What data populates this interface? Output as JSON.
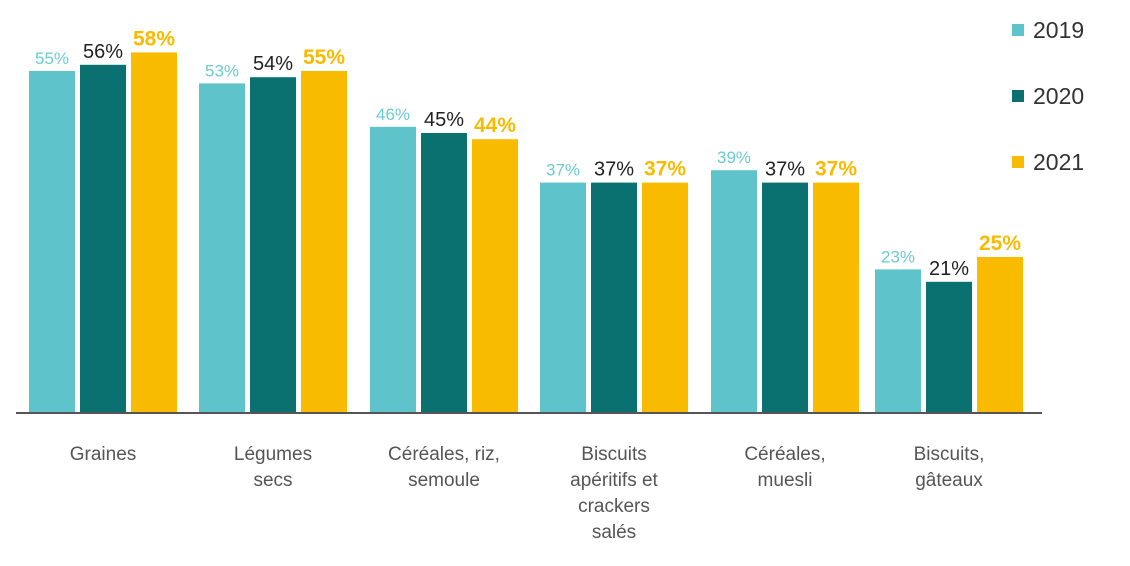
{
  "chart_data": {
    "type": "bar",
    "categories": [
      "Graines",
      "Légumes secs",
      "Céréales, riz, semoule",
      "Biscuits apéritifs et crackers salés",
      "Céréales, muesli",
      "Biscuits, gâteaux"
    ],
    "category_lines": [
      [
        "Graines"
      ],
      [
        "Légumes",
        "secs"
      ],
      [
        "Céréales, riz,",
        "semoule"
      ],
      [
        "Biscuits",
        "apéritifs et",
        "crackers",
        "salés"
      ],
      [
        "Céréales,",
        "muesli"
      ],
      [
        "Biscuits,",
        "gâteaux"
      ]
    ],
    "series": [
      {
        "name": "2019",
        "values": [
          55,
          53,
          46,
          37,
          39,
          23
        ],
        "labels": [
          "55%",
          "53%",
          "46%",
          "37%",
          "39%",
          "23%"
        ],
        "color": "#5fc3cc"
      },
      {
        "name": "2020",
        "values": [
          56,
          54,
          45,
          37,
          37,
          21
        ],
        "labels": [
          "56%",
          "54%",
          "45%",
          "37%",
          "37%",
          "21%"
        ],
        "color": "#0a7170"
      },
      {
        "name": "2021",
        "values": [
          58,
          55,
          44,
          37,
          37,
          25
        ],
        "labels": [
          "58%",
          "55%",
          "44%",
          "37%",
          "37%",
          "25%"
        ],
        "color": "#f8bb00"
      }
    ],
    "ylim": [
      0,
      60
    ],
    "grid": false,
    "legend_position": "top-right",
    "label_colors": [
      "#6ccad2",
      "#222222",
      "#f8bb00"
    ],
    "axis_color": "#555555",
    "tick_label_color": "#555555"
  }
}
